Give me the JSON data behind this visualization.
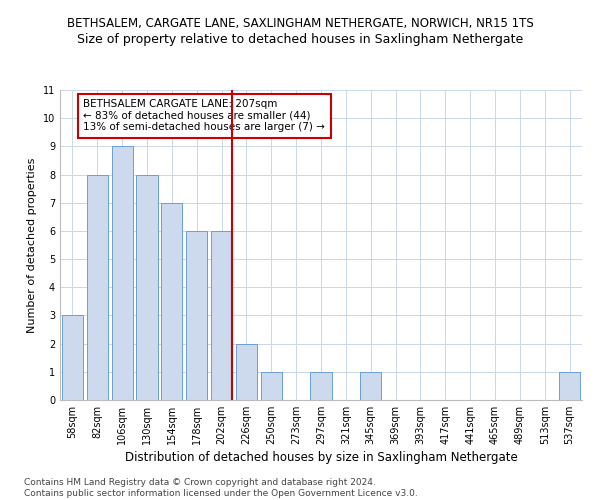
{
  "title1": "BETHSALEM, CARGATE LANE, SAXLINGHAM NETHERGATE, NORWICH, NR15 1TS",
  "title2": "Size of property relative to detached houses in Saxlingham Nethergate",
  "xlabel": "Distribution of detached houses by size in Saxlingham Nethergate",
  "ylabel": "Number of detached properties",
  "footnote": "Contains HM Land Registry data © Crown copyright and database right 2024.\nContains public sector information licensed under the Open Government Licence v3.0.",
  "bar_labels": [
    "58sqm",
    "82sqm",
    "106sqm",
    "130sqm",
    "154sqm",
    "178sqm",
    "202sqm",
    "226sqm",
    "250sqm",
    "273sqm",
    "297sqm",
    "321sqm",
    "345sqm",
    "369sqm",
    "393sqm",
    "417sqm",
    "441sqm",
    "465sqm",
    "489sqm",
    "513sqm",
    "537sqm"
  ],
  "bar_values": [
    3,
    8,
    9,
    8,
    7,
    6,
    6,
    2,
    1,
    0,
    1,
    0,
    1,
    0,
    0,
    0,
    0,
    0,
    0,
    0,
    1
  ],
  "bar_color": "#cdd9ed",
  "bar_edge_color": "#6b9fd4",
  "vline_color": "#cc0000",
  "annotation_text": "BETHSALEM CARGATE LANE: 207sqm\n← 83% of detached houses are smaller (44)\n13% of semi-detached houses are larger (7) →",
  "annotation_box_color": "#cc0000",
  "ylim": [
    0,
    11
  ],
  "yticks": [
    0,
    1,
    2,
    3,
    4,
    5,
    6,
    7,
    8,
    9,
    10,
    11
  ],
  "background_color": "#ffffff",
  "grid_color": "#c8d8e8",
  "title1_fontsize": 8.5,
  "title2_fontsize": 9,
  "xlabel_fontsize": 8.5,
  "ylabel_fontsize": 8,
  "tick_fontsize": 7,
  "annotation_fontsize": 7.5,
  "footnote_fontsize": 6.5
}
